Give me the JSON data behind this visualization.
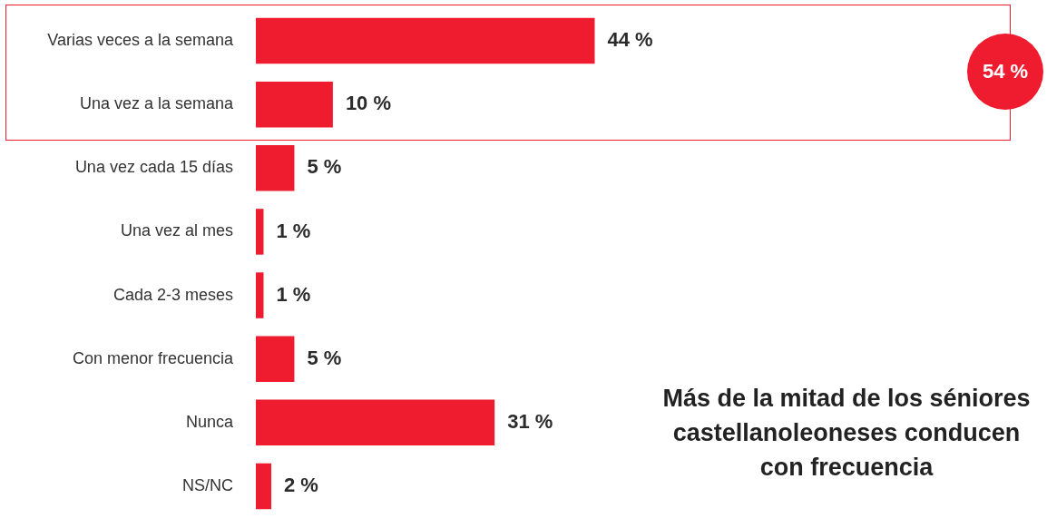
{
  "chart_data": {
    "type": "bar",
    "orientation": "horizontal",
    "categories": [
      "Varias veces a la semana",
      "Una vez a la semana",
      "Una vez cada 15 días",
      "Una vez al mes",
      "Cada 2-3 meses",
      "Con menor frecuencia",
      "Nunca",
      "NS/NC"
    ],
    "values": [
      44,
      10,
      5,
      1,
      1,
      5,
      31,
      2
    ],
    "value_labels": [
      "44 %",
      "10 %",
      "5 %",
      "1 %",
      "1 %",
      "5 %",
      "31 %",
      "2 %"
    ],
    "color": "#ee1c2e",
    "legend": false,
    "annotations": [
      "54 %",
      "Más de la mitad de los séniores castellanoleoneses conducen con frecuencia"
    ]
  }
}
